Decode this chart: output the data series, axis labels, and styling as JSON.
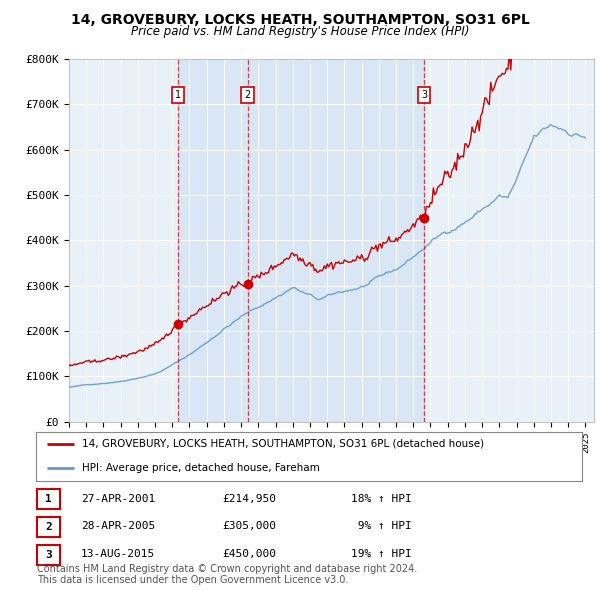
{
  "title": "14, GROVEBURY, LOCKS HEATH, SOUTHAMPTON, SO31 6PL",
  "subtitle": "Price paid vs. HM Land Registry's House Price Index (HPI)",
  "ylim": [
    0,
    800000
  ],
  "yticks": [
    0,
    100000,
    200000,
    300000,
    400000,
    500000,
    600000,
    700000,
    800000
  ],
  "ytick_labels": [
    "£0",
    "£100K",
    "£200K",
    "£300K",
    "£400K",
    "£500K",
    "£600K",
    "£700K",
    "£800K"
  ],
  "sale_dates_num": [
    2001.32,
    2005.37,
    2015.62
  ],
  "sale_prices": [
    214950,
    305000,
    450000
  ],
  "sale_labels": [
    "1",
    "2",
    "3"
  ],
  "sale_annotations": [
    [
      "1",
      "27-APR-2001",
      "£214,950",
      "18% ↑ HPI"
    ],
    [
      "2",
      "28-APR-2005",
      "£305,000",
      " 9% ↑ HPI"
    ],
    [
      "3",
      "13-AUG-2015",
      "£450,000",
      "19% ↑ HPI"
    ]
  ],
  "legend_line1": "14, GROVEBURY, LOCKS HEATH, SOUTHAMPTON, SO31 6PL (detached house)",
  "legend_line2": "HPI: Average price, detached house, Fareham",
  "footnote": "Contains HM Land Registry data © Crown copyright and database right 2024.\nThis data is licensed under the Open Government Licence v3.0.",
  "red_color": "#cc0000",
  "blue_color": "#6699cc",
  "shade_color": "#ddeeff",
  "dashed_color": "#cc0000",
  "background_color": "#ffffff",
  "grid_color": "#cccccc",
  "title_fontsize": 10,
  "subtitle_fontsize": 8.5,
  "tick_fontsize": 8,
  "legend_fontsize": 8,
  "footnote_fontsize": 7,
  "xmin": 1995,
  "xmax": 2025.5
}
